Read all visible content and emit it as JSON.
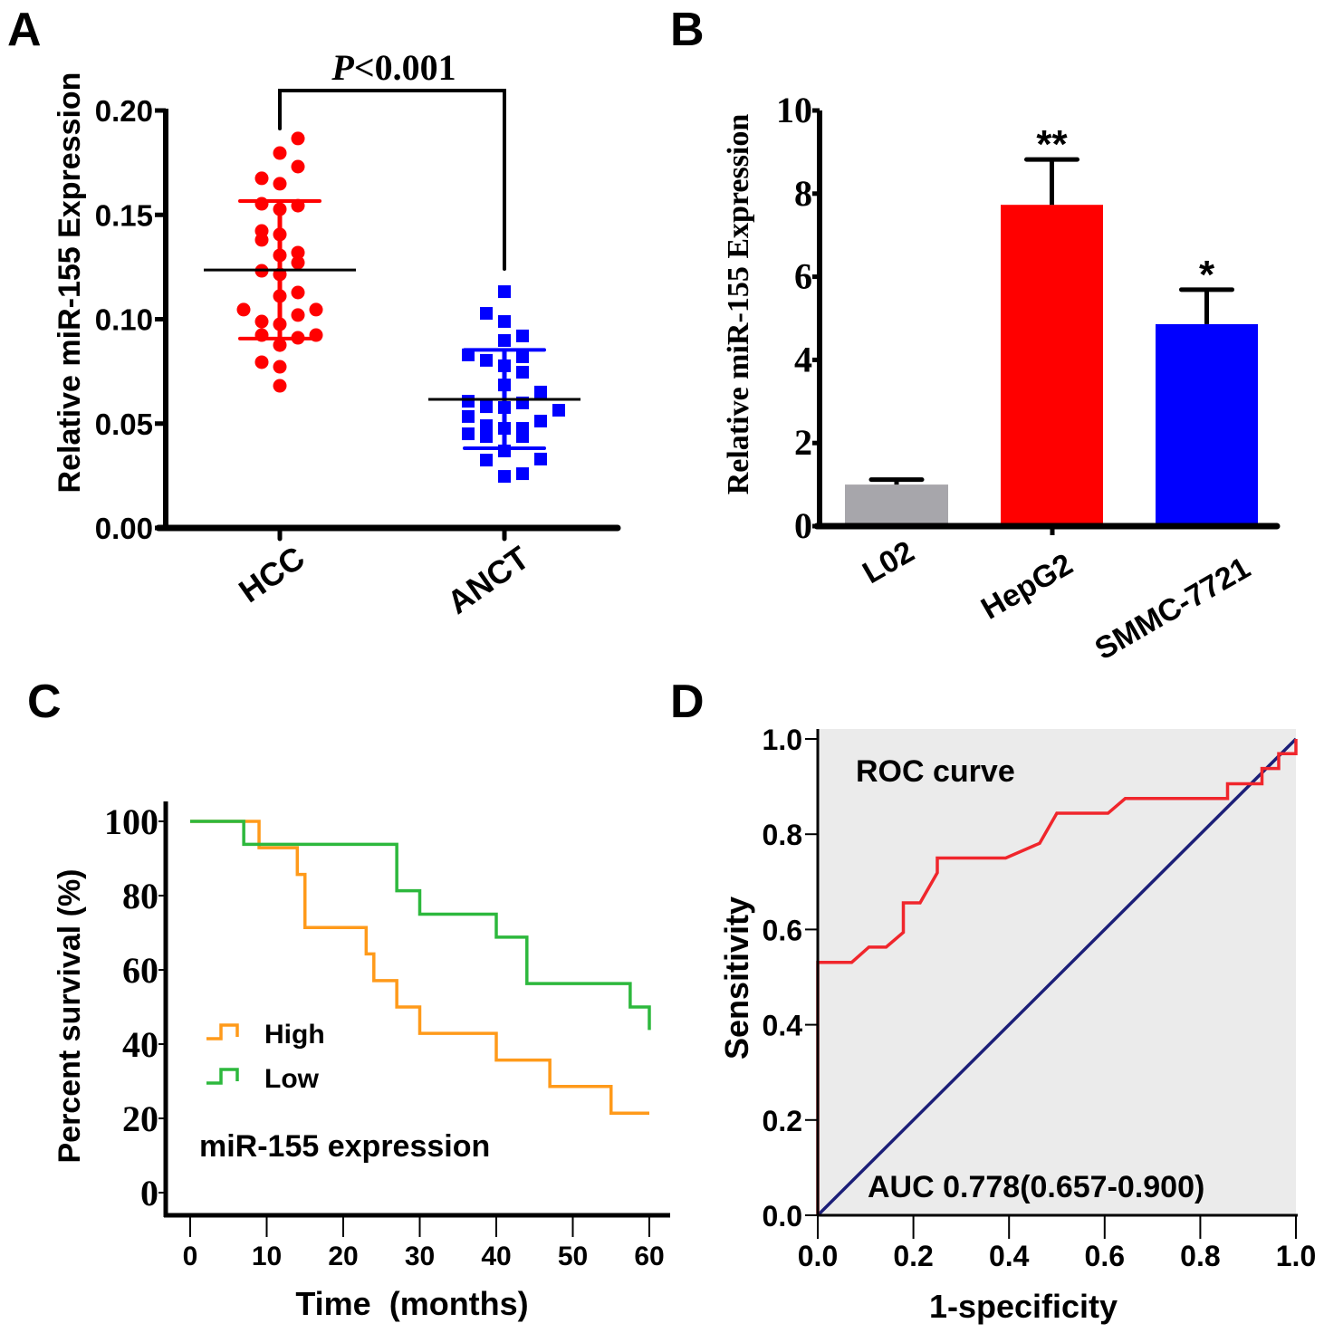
{
  "figure": {
    "panel_labels": [
      "A",
      "B",
      "C",
      "D"
    ]
  },
  "chart_data": [
    {
      "panel": "A",
      "type": "scatter",
      "title": "",
      "xlabel": "",
      "ylabel": "Relative miR-155 Expression",
      "ylim": [
        0,
        0.2
      ],
      "yticks": [
        0.0,
        0.05,
        0.1,
        0.15,
        0.2
      ],
      "ytick_labels": [
        "0.00",
        "0.05",
        "0.10",
        "0.15",
        "0.20"
      ],
      "categories": [
        "HCC",
        "ANCT"
      ],
      "annotation": {
        "prefix": "P",
        "text": "<0.001"
      },
      "series": [
        {
          "name": "HCC",
          "marker": "circle",
          "color": "#ff0000",
          "mean": 0.1236,
          "sd_upper": 0.1566,
          "sd_lower": 0.0907,
          "points": [
            {
              "offset": 1,
              "y": 0.1866
            },
            {
              "offset": 0,
              "y": 0.1796
            },
            {
              "offset": 1,
              "y": 0.1731
            },
            {
              "offset": -1,
              "y": 0.1675
            },
            {
              "offset": 0,
              "y": 0.1649
            },
            {
              "offset": -1,
              "y": 0.1553
            },
            {
              "offset": 0,
              "y": 0.1527
            },
            {
              "offset": 1,
              "y": 0.1544
            },
            {
              "offset": -1,
              "y": 0.1423
            },
            {
              "offset": -1,
              "y": 0.138
            },
            {
              "offset": 0,
              "y": 0.1406
            },
            {
              "offset": 0,
              "y": 0.1306
            },
            {
              "offset": 1,
              "y": 0.1319
            },
            {
              "offset": 1,
              "y": 0.1271
            },
            {
              "offset": -1,
              "y": 0.1232
            },
            {
              "offset": 0,
              "y": 0.1215
            },
            {
              "offset": 1,
              "y": 0.1128
            },
            {
              "offset": 0,
              "y": 0.1111
            },
            {
              "offset": -2,
              "y": 0.1046
            },
            {
              "offset": 2,
              "y": 0.1046
            },
            {
              "offset": 1,
              "y": 0.102
            },
            {
              "offset": -1,
              "y": 0.0989
            },
            {
              "offset": 0,
              "y": 0.0976
            },
            {
              "offset": -1,
              "y": 0.0924
            },
            {
              "offset": 1,
              "y": 0.0911
            },
            {
              "offset": 2,
              "y": 0.0924
            },
            {
              "offset": 0,
              "y": 0.0876
            },
            {
              "offset": -1,
              "y": 0.0794
            },
            {
              "offset": 0,
              "y": 0.0772
            },
            {
              "offset": 0,
              "y": 0.0681
            }
          ]
        },
        {
          "name": "ANCT",
          "marker": "square",
          "color": "#0000ff",
          "mean": 0.0616,
          "sd_upper": 0.0853,
          "sd_lower": 0.0382,
          "points": [
            {
              "offset": 0,
              "y": 0.1132
            },
            {
              "offset": -1,
              "y": 0.1028
            },
            {
              "offset": 0,
              "y": 0.0989
            },
            {
              "offset": 0,
              "y": 0.0898
            },
            {
              "offset": 1,
              "y": 0.092
            },
            {
              "offset": -2,
              "y": 0.0829
            },
            {
              "offset": -1,
              "y": 0.0803
            },
            {
              "offset": 1,
              "y": 0.082
            },
            {
              "offset": 0,
              "y": 0.0777
            },
            {
              "offset": 1,
              "y": 0.0746
            },
            {
              "offset": 0,
              "y": 0.0685
            },
            {
              "offset": 2,
              "y": 0.0651
            },
            {
              "offset": -2,
              "y": 0.0607
            },
            {
              "offset": -1,
              "y": 0.0581
            },
            {
              "offset": 1,
              "y": 0.0599
            },
            {
              "offset": 0,
              "y": 0.0577
            },
            {
              "offset": 3,
              "y": 0.0564
            },
            {
              "offset": -2,
              "y": 0.0534
            },
            {
              "offset": 2,
              "y": 0.0512
            },
            {
              "offset": -1,
              "y": 0.049
            },
            {
              "offset": 0,
              "y": 0.0477
            },
            {
              "offset": 1,
              "y": 0.0477
            },
            {
              "offset": -2,
              "y": 0.0451
            },
            {
              "offset": -1,
              "y": 0.0438
            },
            {
              "offset": 1,
              "y": 0.0438
            },
            {
              "offset": 0,
              "y": 0.0369
            },
            {
              "offset": -1,
              "y": 0.0325
            },
            {
              "offset": 2,
              "y": 0.033
            },
            {
              "offset": 0,
              "y": 0.0247
            },
            {
              "offset": 1,
              "y": 0.026
            }
          ]
        }
      ]
    },
    {
      "panel": "B",
      "type": "bar",
      "title": "",
      "xlabel": "",
      "ylabel": "Relative miR-155 Expression",
      "ylim": [
        0,
        10
      ],
      "yticks": [
        0,
        2,
        4,
        6,
        8,
        10
      ],
      "ytick_labels": [
        "0",
        "2",
        "4",
        "6",
        "8",
        "10"
      ],
      "categories": [
        "L02",
        "HepG2",
        "SMMC-7721"
      ],
      "values": [
        1.0,
        7.73,
        4.86
      ],
      "errors": [
        0.12,
        1.09,
        0.83
      ],
      "colors": [
        "#a7a6ab",
        "#ff0000",
        "#0000ff"
      ],
      "significance": [
        "",
        "**",
        "*"
      ]
    },
    {
      "panel": "C",
      "type": "line",
      "subtype": "kaplan-meier",
      "title": "",
      "xlabel": "Time  (months)",
      "ylabel": "Percent survival (%)",
      "xlim": [
        0,
        60
      ],
      "ylim": [
        0,
        100
      ],
      "xticks": [
        0,
        10,
        20,
        30,
        40,
        50,
        60
      ],
      "yticks": [
        0,
        20,
        40,
        60,
        80,
        100
      ],
      "legend": {
        "position": "lower-left",
        "title": "miR-155 expression"
      },
      "series": [
        {
          "name": "High",
          "color": "#ff9a1a",
          "steps": [
            [
              0,
              100
            ],
            [
              9,
              92.9
            ],
            [
              14,
              85.7
            ],
            [
              15,
              71.4
            ],
            [
              23,
              64.3
            ],
            [
              24,
              57.1
            ],
            [
              27,
              50.0
            ],
            [
              30,
              42.9
            ],
            [
              40,
              35.7
            ],
            [
              47,
              28.6
            ],
            [
              55,
              21.4
            ],
            [
              60,
              21.4
            ]
          ]
        },
        {
          "name": "Low",
          "color": "#2db83d",
          "steps": [
            [
              0,
              100
            ],
            [
              7,
              93.8
            ],
            [
              27,
              81.3
            ],
            [
              30,
              75.0
            ],
            [
              40,
              68.8
            ],
            [
              44,
              56.3
            ],
            [
              57.5,
              50.0
            ],
            [
              60,
              43.8
            ]
          ]
        }
      ]
    },
    {
      "panel": "D",
      "type": "line",
      "subtype": "roc",
      "title": "ROC curve",
      "xlabel": "1-specificity",
      "ylabel": "Sensitivity",
      "xlim": [
        0,
        1
      ],
      "ylim": [
        0,
        1
      ],
      "xticks": [
        0.0,
        0.2,
        0.4,
        0.6,
        0.8,
        1.0
      ],
      "yticks": [
        0.0,
        0.2,
        0.4,
        0.6,
        0.8,
        1.0
      ],
      "tick_labels": [
        "0.0",
        "0.2",
        "0.4",
        "0.6",
        "0.8",
        "1.0"
      ],
      "annotation": "AUC 0.778(0.657-0.900)",
      "background": "#ebebeb",
      "series": [
        {
          "name": "ROC",
          "color": "#f0262c",
          "points": [
            [
              0,
              0
            ],
            [
              0,
              0.531
            ],
            [
              0.071,
              0.531
            ],
            [
              0.107,
              0.563
            ],
            [
              0.143,
              0.563
            ],
            [
              0.179,
              0.594
            ],
            [
              0.179,
              0.656
            ],
            [
              0.214,
              0.656
            ],
            [
              0.25,
              0.719
            ],
            [
              0.25,
              0.75
            ],
            [
              0.393,
              0.75
            ],
            [
              0.464,
              0.781
            ],
            [
              0.5,
              0.844
            ],
            [
              0.607,
              0.844
            ],
            [
              0.643,
              0.875
            ],
            [
              0.857,
              0.875
            ],
            [
              0.857,
              0.906
            ],
            [
              0.929,
              0.906
            ],
            [
              0.929,
              0.938
            ],
            [
              0.964,
              0.938
            ],
            [
              0.964,
              0.969
            ],
            [
              1.0,
              0.969
            ],
            [
              1.0,
              1.0
            ]
          ]
        },
        {
          "name": "Reference",
          "color": "#1c1f78",
          "points": [
            [
              0,
              0
            ],
            [
              1,
              1
            ]
          ]
        }
      ]
    }
  ]
}
